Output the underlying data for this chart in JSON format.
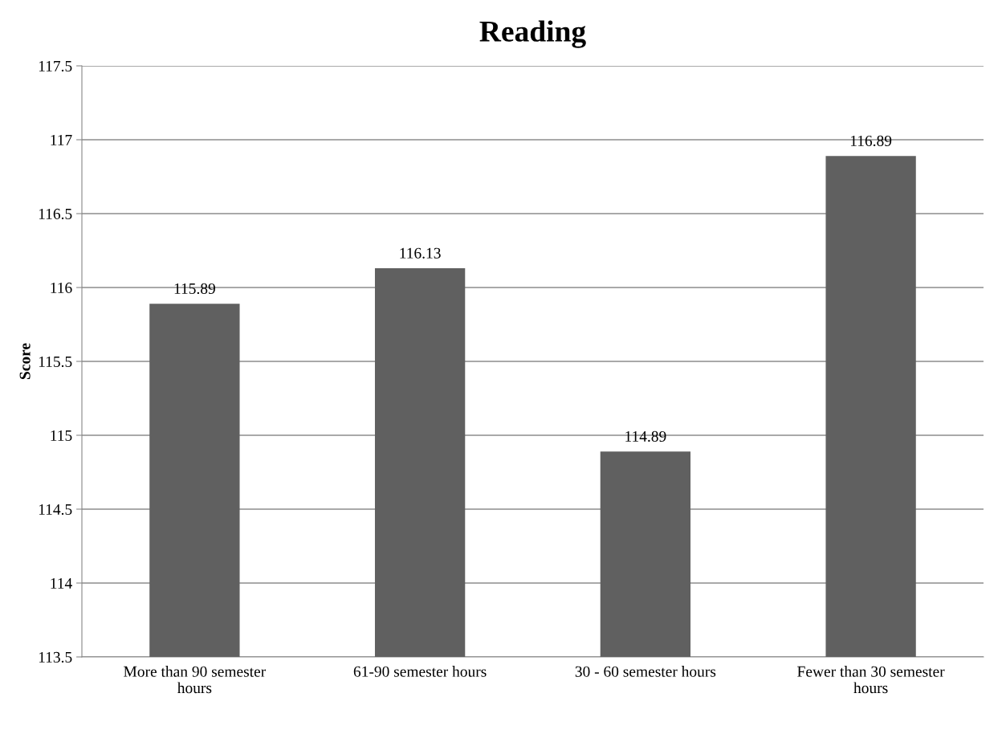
{
  "chart_data": {
    "type": "bar",
    "title": "Reading",
    "ylabel": "Score",
    "categories": [
      "More than 90 semester hours",
      "61-90 semester hours",
      "30 - 60 semester hours",
      "Fewer than 30 semester hours"
    ],
    "values": [
      115.89,
      116.13,
      114.89,
      116.89
    ],
    "color": "#606060",
    "ylim": [
      113.5,
      117.5
    ],
    "yticks": [
      113.5,
      114,
      114.5,
      115,
      115.5,
      116,
      116.5,
      117,
      117.5
    ],
    "grid": "y",
    "data_labels": true,
    "legend": false
  }
}
